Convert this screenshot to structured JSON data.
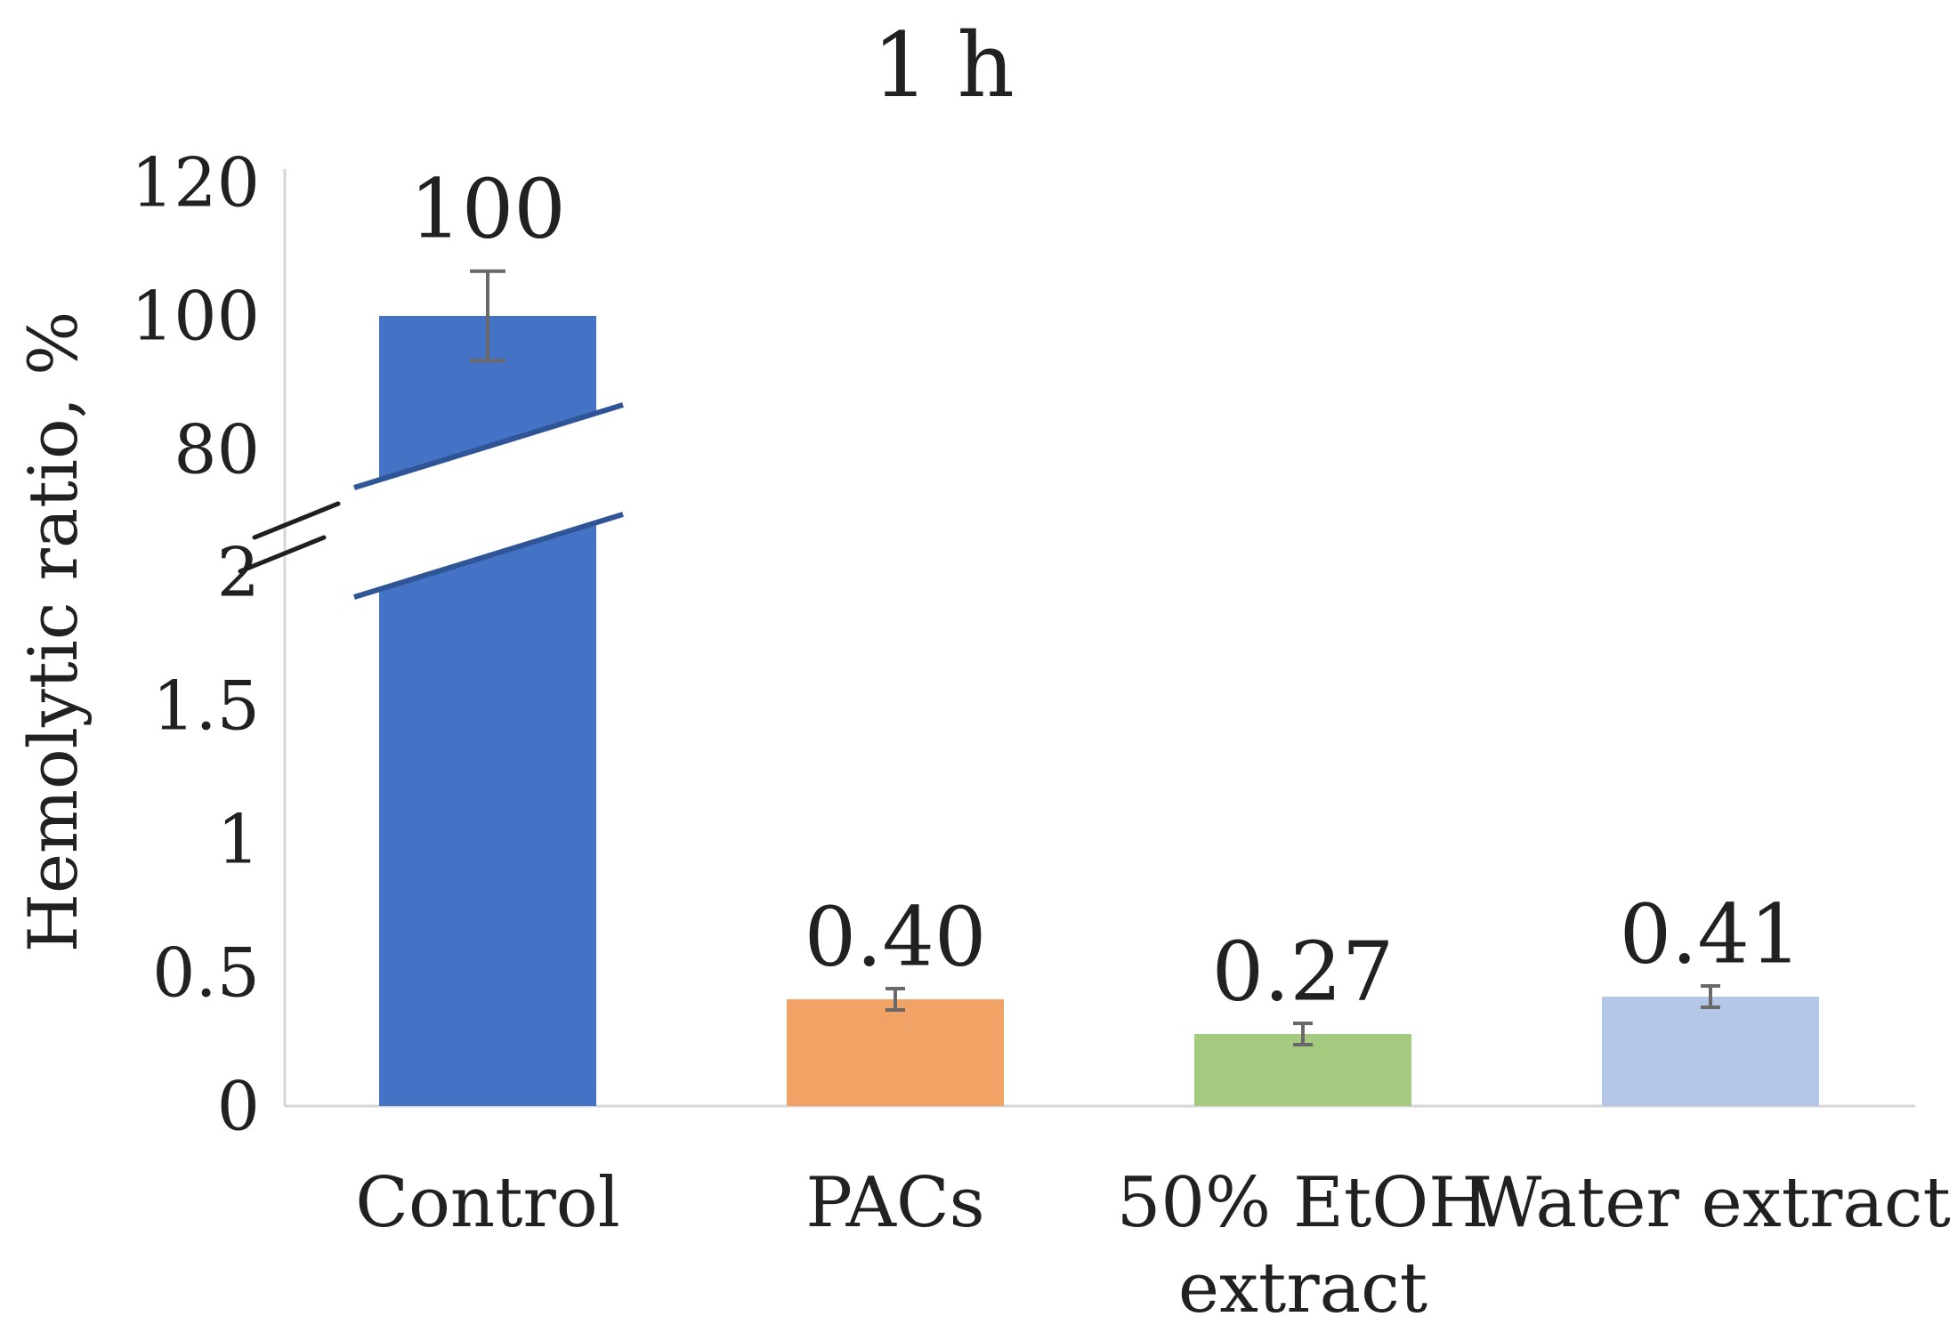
{
  "title": "1 h",
  "y_axis_title": "Hemolytic ratio, %",
  "chart_data": {
    "type": "bar",
    "title": "1 h",
    "xlabel": "",
    "ylabel": "Hemolytic ratio, %",
    "legend": "none",
    "grid": false,
    "broken_y_axis": true,
    "lower_axis_range": [
      0,
      2
    ],
    "upper_axis_range": [
      80,
      120
    ],
    "lower_tick_labels": [
      "0",
      "0.5",
      "1",
      "1.5",
      "2"
    ],
    "lower_tick_values": [
      0,
      0.5,
      1,
      1.5,
      2
    ],
    "upper_tick_labels": [
      "80",
      "100",
      "120"
    ],
    "upper_tick_values": [
      80,
      100,
      120
    ],
    "categories": [
      {
        "label": "Control"
      },
      {
        "label": "PACs"
      },
      {
        "label": "50% EtOH",
        "label2": "extract"
      },
      {
        "label": "Water extract"
      }
    ],
    "values": [
      100,
      0.4,
      0.27,
      0.41
    ],
    "data_labels": [
      "100",
      "0.40",
      "0.27",
      "0.41"
    ],
    "errors": [
      6.7,
      0.04,
      0.04,
      0.04
    ],
    "bar_colors": [
      "#4472C4",
      "#F0A365",
      "#A4CA80",
      "#B4C7E7"
    ]
  },
  "colors": {
    "control_bar": "#4472C4",
    "pacs_bar": "#F0A365",
    "etoh_bar": "#A4CA80",
    "water_bar": "#B4C7E7",
    "break_line": "#2F5597",
    "axis_line": "#D6D6D6",
    "error_bar": "#696969",
    "text": "#212121"
  }
}
